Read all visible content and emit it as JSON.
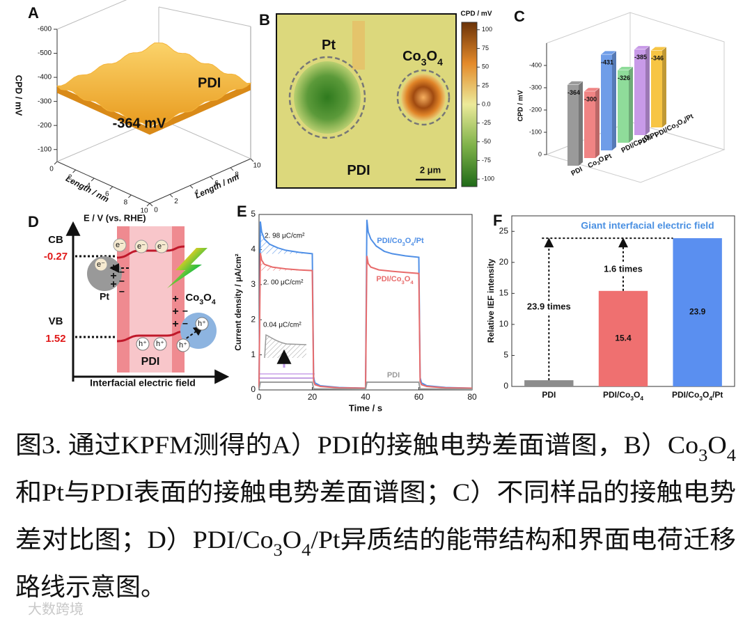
{
  "chart_data": [
    {
      "type": "surface",
      "panel": "A",
      "zlabel": "CPD / mV",
      "zlim": [
        -600,
        -50
      ],
      "zticks": [
        -600,
        -500,
        -400,
        -300,
        -200,
        -100
      ],
      "xlabel": "Length / nm",
      "ylabel": "Length / nm",
      "xlim": [
        0,
        10
      ],
      "xticks": [
        0,
        2,
        4,
        6,
        8,
        10
      ],
      "ylim": [
        0,
        10
      ],
      "yticks": [
        0,
        2,
        4,
        6,
        8,
        10
      ],
      "series": [
        {
          "name": "PDI",
          "color": "#f5b43a",
          "value": -364
        }
      ],
      "annotation": "-364 mV"
    },
    {
      "type": "heatmap",
      "panel": "B",
      "colorbar_label": "CPD / mV",
      "clim": [
        -110,
        110
      ],
      "cticks": [
        100,
        75,
        50,
        25,
        {
          "value": 0,
          "label": "0.0"
        },
        -25,
        -50,
        -75,
        -100
      ],
      "labels": [
        "Pt",
        "Co3O4",
        "PDI"
      ],
      "scale_bar": "2 μm"
    },
    {
      "type": "bar3d",
      "panel": "C",
      "ylabel": "CPD / mV",
      "ylim": [
        0,
        -500
      ],
      "yticks": [
        0,
        -100,
        -200,
        -300,
        -400
      ],
      "categories": [
        "PDI",
        "Co3O4",
        "Pt",
        "PDI/Co3O4",
        "PDI/Pt",
        "PDI/Co3O4/Pt"
      ],
      "values": [
        -364,
        -300,
        -431,
        -326,
        -385,
        -346
      ],
      "colors": [
        "#9a9a9a",
        "#f08484",
        "#6f9de8",
        "#8fdc9a",
        "#c89ae8",
        "#f7c544"
      ]
    },
    {
      "type": "line",
      "panel": "E",
      "xlabel": "Time / s",
      "ylabel": "Current density / μA/cm²",
      "xlim": [
        0,
        80
      ],
      "xticks": [
        0,
        20,
        40,
        60,
        80
      ],
      "ylim": [
        0,
        5
      ],
      "yticks": [
        0,
        1,
        2,
        3,
        4,
        5
      ],
      "series": [
        {
          "name": "PDI/Co3O4/Pt",
          "color": "#4f8fe6",
          "x": [
            0,
            0.5,
            1,
            2,
            4,
            7,
            10,
            15,
            20,
            20.5,
            21,
            23,
            30,
            40,
            40.5,
            41,
            42,
            44,
            47,
            50,
            55,
            60,
            60.5,
            61,
            63,
            70,
            80
          ],
          "values": [
            0.05,
            4.8,
            4.5,
            4.3,
            4.15,
            4.05,
            3.98,
            3.92,
            3.88,
            0.35,
            0.2,
            0.12,
            0.07,
            0.05,
            4.85,
            4.5,
            4.3,
            4.1,
            3.95,
            3.88,
            3.82,
            3.78,
            0.35,
            0.2,
            0.12,
            0.07,
            0.05
          ]
        },
        {
          "name": "PDI/Co3O4",
          "color": "#e86b6b",
          "x": [
            0,
            0.5,
            1,
            2,
            5,
            10,
            15,
            20,
            20.5,
            21,
            23,
            30,
            40,
            40.5,
            41,
            42,
            45,
            50,
            55,
            60,
            60.5,
            61,
            63,
            70,
            80
          ],
          "values": [
            0.05,
            3.9,
            3.7,
            3.58,
            3.5,
            3.45,
            3.42,
            3.4,
            0.25,
            0.15,
            0.1,
            0.06,
            0.05,
            3.82,
            3.6,
            3.5,
            3.42,
            3.38,
            3.35,
            3.32,
            0.25,
            0.15,
            0.1,
            0.06,
            0.05
          ]
        },
        {
          "name": "PDI",
          "color": "#9a9a9a",
          "x": [
            0,
            0.5,
            20,
            20.5,
            40,
            40.5,
            60,
            60.5,
            80
          ],
          "values": [
            0.02,
            0.22,
            0.22,
            0.03,
            0.02,
            0.22,
            0.22,
            0.03,
            0.02
          ]
        }
      ],
      "annotations": [
        "2. 98 μC/cm²",
        "2. 00 μC/cm²",
        "0.04 μC/cm²"
      ]
    },
    {
      "type": "bar",
      "panel": "F",
      "ylabel": "Relative IEF intensity",
      "ylim": [
        0,
        27.5
      ],
      "yticks": [
        0,
        5,
        10,
        15,
        20,
        25
      ],
      "categories": [
        "PDI",
        "PDI/Co3O4",
        "PDI/Co3O4/Pt"
      ],
      "values": [
        1,
        15.4,
        23.9
      ],
      "value_labels": [
        null,
        "15.4",
        "23.9"
      ],
      "colors": [
        "#8c8c8c",
        "#ef7070",
        "#5a8ff0"
      ],
      "annotations": [
        "Giant interfacial electric field",
        "1.6  times",
        "23.9  times"
      ]
    }
  ],
  "diagram": {
    "panel": "D",
    "axis_label": "E / V (vs. RHE)",
    "cb": "CB",
    "cb_value": "-0.27",
    "vb": "VB",
    "vb_value": "1.52",
    "pt": "Pt",
    "co": "Co3O4",
    "pdi": "PDI",
    "field": "Interfacial electric field",
    "electron": "e⁻",
    "hole": "h⁺",
    "plus": "+",
    "minus": "−"
  },
  "caption": {
    "lines": [
      "图3. 通过KPFM测得的A）PDI的接触电势差面谱图，B）Co3O4",
      "和Pt与PDI表面的接触电势差面谱图；C）不同样品的接触电势",
      "差对比图；D）PDI/Co3O4/Pt异质结的能带结构和界面电荷迁移",
      "路线示意图。"
    ]
  },
  "watermark": "大数跨境"
}
